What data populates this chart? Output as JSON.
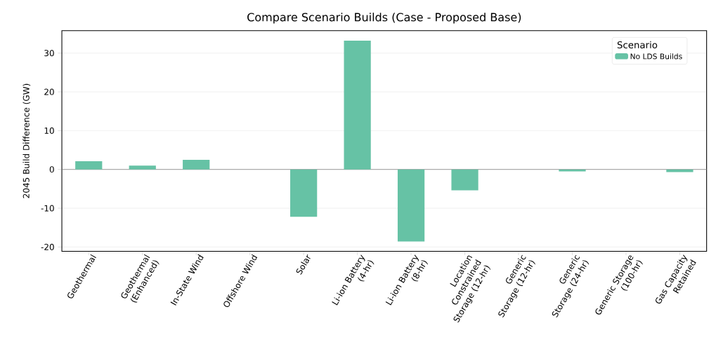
{
  "chart_data": {
    "type": "bar",
    "title": "Compare Scenario Builds (Case - Proposed Base)",
    "ylabel": "2045 Build Difference (GW)",
    "legend_title": "Scenario",
    "categories": [
      "Geothermal",
      "Geothermal (Enhanced)",
      "In-State Wind",
      "Offshore Wind",
      "Solar",
      "Li-ion Battery (4-hr)",
      "Li-ion Battery (8-hr)",
      "Location Constrained Storage (12-hr)",
      "Generic Storage (12-hr)",
      "Generic Storage (24-hr)",
      "Generic Storage (100-hr)",
      "Gas Capacity Retained"
    ],
    "series": [
      {
        "name": "No LDS Builds",
        "color": "#66c2a5",
        "values": [
          2.1,
          1.0,
          2.5,
          0,
          -12.2,
          33.2,
          -18.6,
          -5.4,
          0,
          -0.5,
          0,
          -0.7
        ]
      }
    ],
    "ylim": [
      -21.1,
      35.8
    ],
    "yticks": [
      -20,
      -10,
      0,
      10,
      20,
      30
    ],
    "grid": "y",
    "legend": "top right"
  }
}
